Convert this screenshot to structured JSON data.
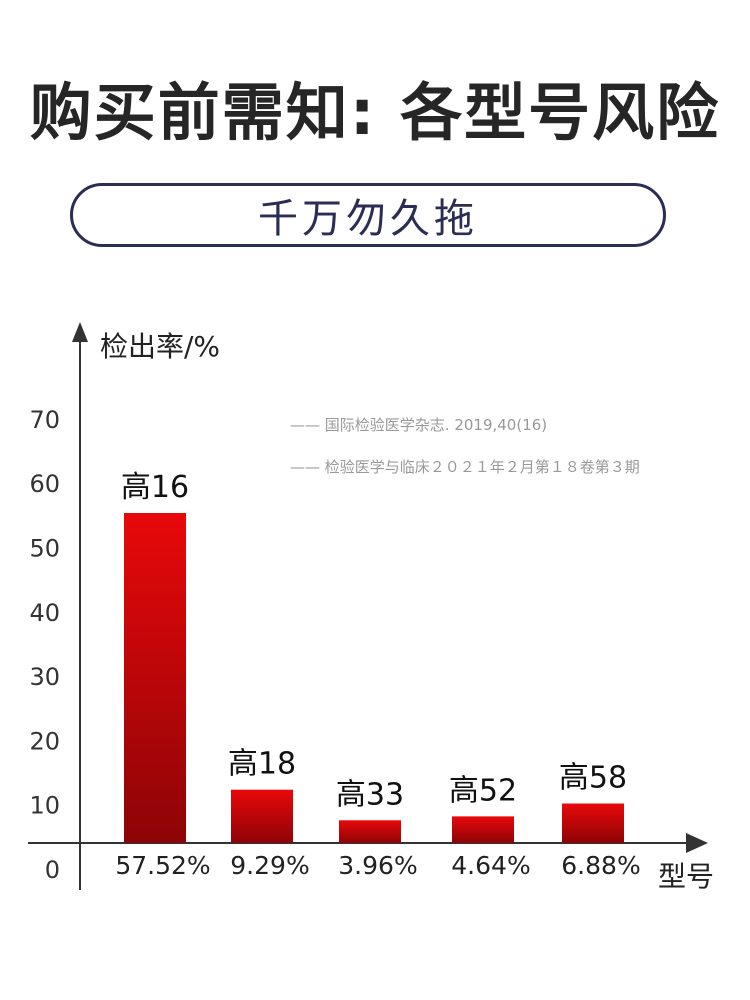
{
  "header": {
    "title": "购买前需知: 各型号风险",
    "subtitle": "千万勿久拖"
  },
  "sources": [
    "国际检验医学杂志. 2019,40(16)",
    "检验医学与临床２０２１年２月第１８卷第３期"
  ],
  "colors": {
    "bar_top": "#e8080a",
    "bar_bottom": "#8d0407",
    "accent": "#2b2d55",
    "axis": "#333333"
  },
  "chart_data": {
    "type": "bar",
    "categories": [
      "高16",
      "高18",
      "高33",
      "高52",
      "高58"
    ],
    "values": [
      57.52,
      9.29,
      3.96,
      4.64,
      6.88
    ],
    "value_labels": [
      "57.52%",
      "9.29%",
      "3.96%",
      "4.64%",
      "6.88%"
    ],
    "ylabel": "检出率/%",
    "xlabel": "型号",
    "yticks": [
      0,
      10,
      20,
      30,
      40,
      50,
      60,
      70
    ],
    "ylim": [
      0,
      80
    ],
    "grid": false,
    "legend": "none"
  }
}
